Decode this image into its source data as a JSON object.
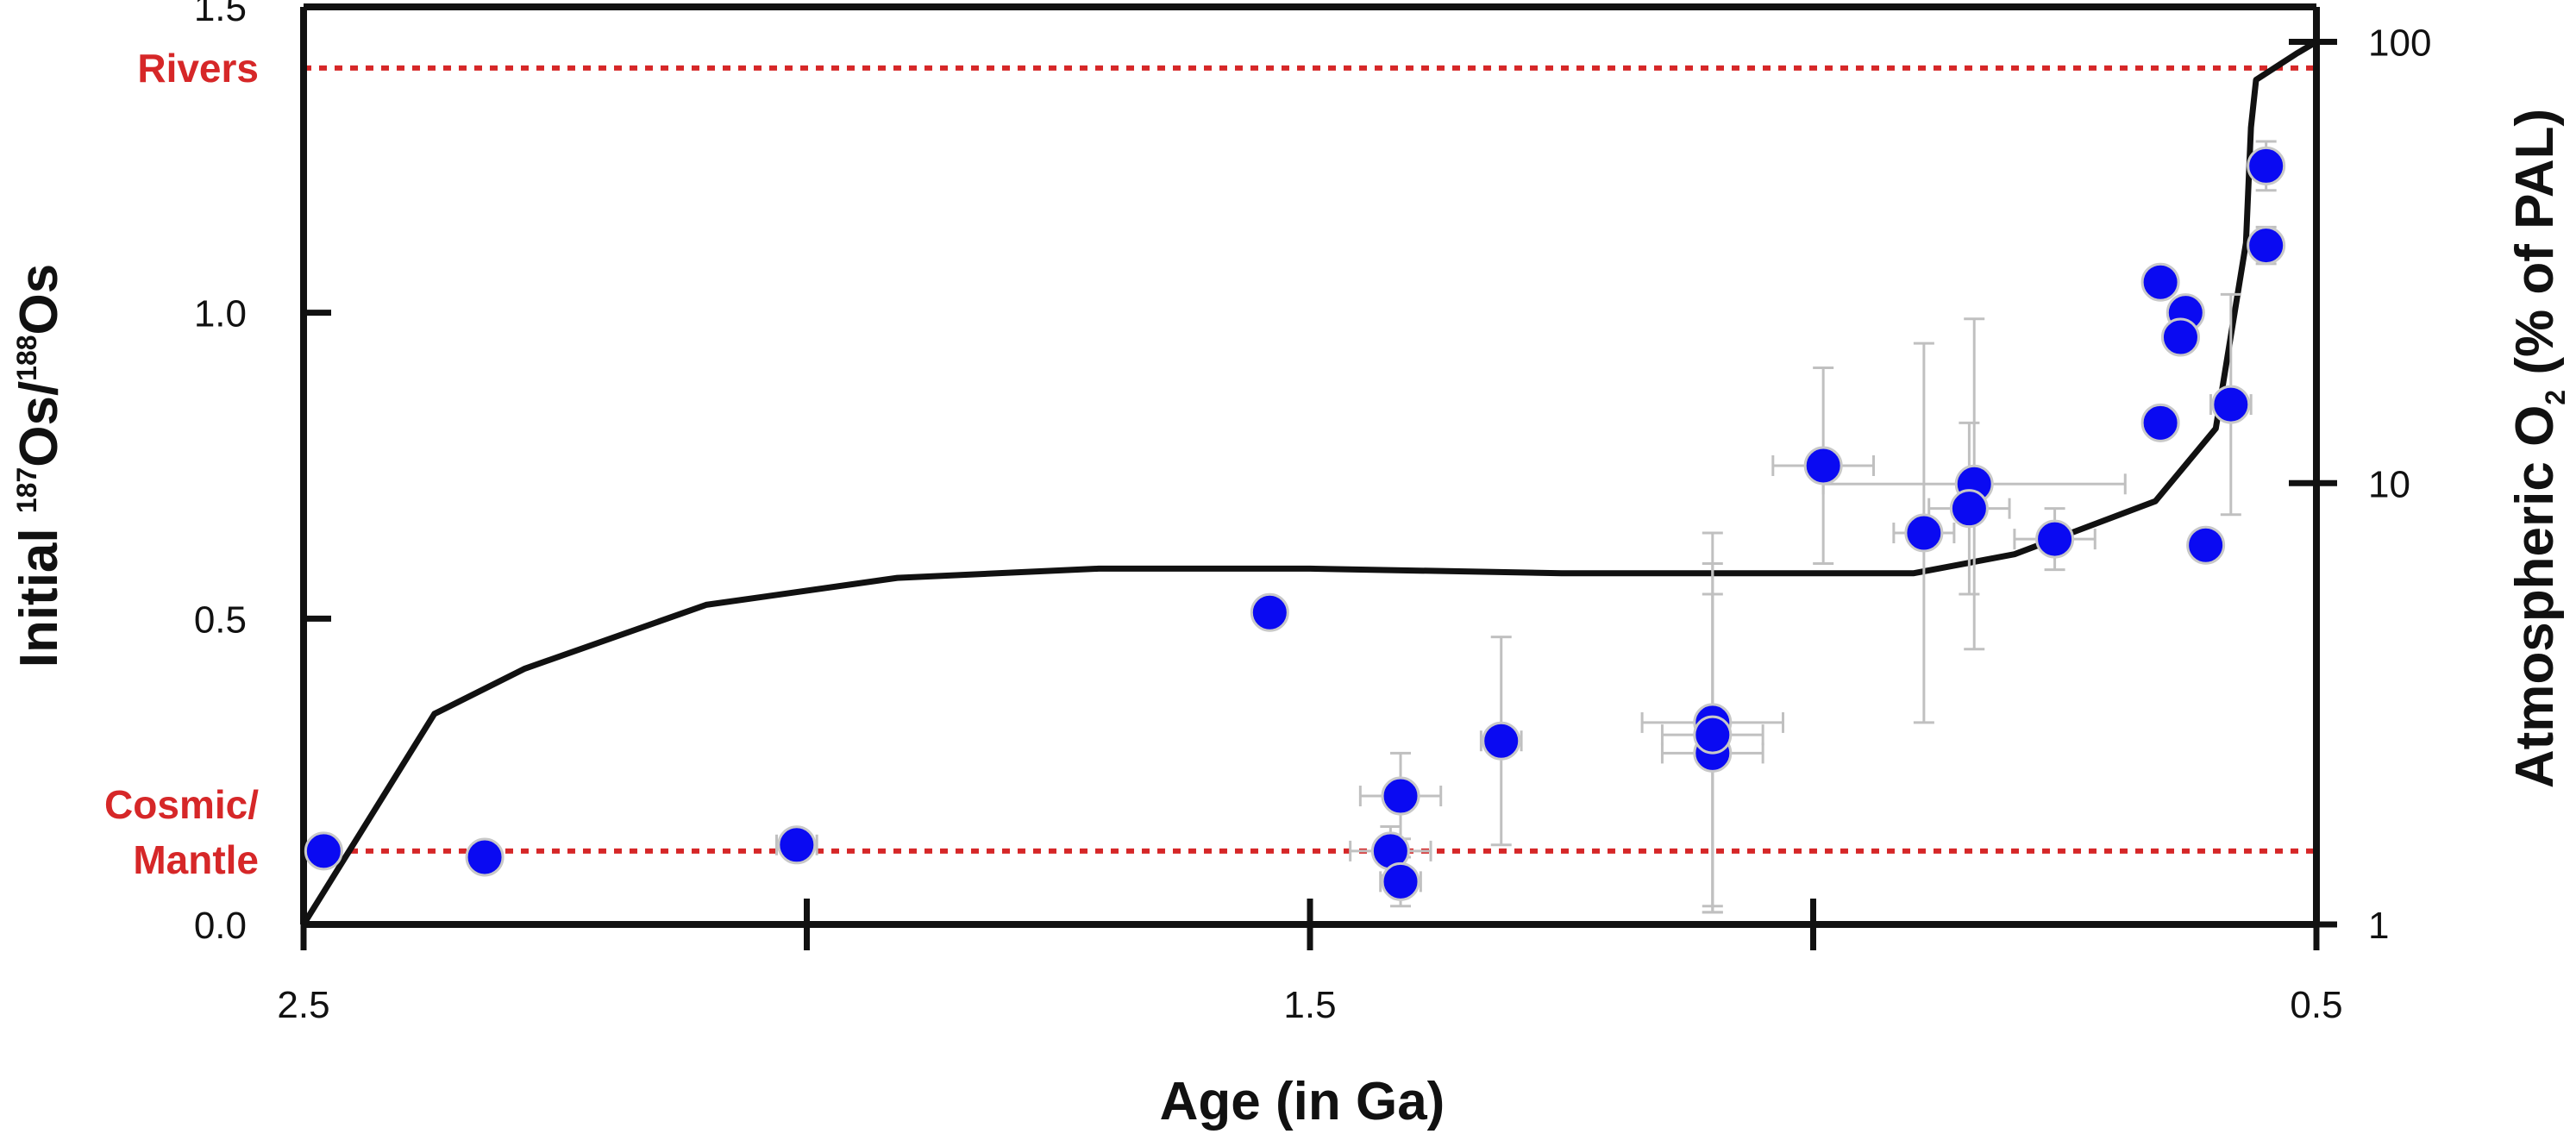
{
  "chart_data": {
    "type": "scatter",
    "xlabel": "Age (in Ga)",
    "ylabel": {
      "prefix": "Initial ",
      "sup1": "187",
      "mid": "Os/",
      "sup2": "188",
      "suffix": "Os"
    },
    "y2label": {
      "prefix": "Atmospheric O",
      "sub": "2",
      "suffix": " (% of PAL)"
    },
    "x_range": [
      2.5,
      0.5
    ],
    "x_reversed": true,
    "x_ticks": [
      2.5,
      2.0,
      1.5,
      1.0,
      0.5
    ],
    "x_tick_labels": [
      "2.5",
      "",
      "1.5",
      "",
      "0.5"
    ],
    "ylim": [
      0.0,
      1.5
    ],
    "y_ticks": [
      0.0,
      0.5,
      1.0,
      1.5
    ],
    "y_tick_labels": [
      "0.0",
      "0.5",
      "1.0",
      "1.5"
    ],
    "y2_scale": "log",
    "y2lim": [
      1,
      120
    ],
    "y2_ticks": [
      1,
      10,
      100
    ],
    "y2_tick_labels": [
      "1",
      "10",
      "100"
    ],
    "reference_lines": [
      {
        "label": "Rivers",
        "y": 1.4,
        "color": "#d62728"
      },
      {
        "label": "Cosmic/\nMantle",
        "y": 0.12,
        "color": "#d62728"
      }
    ],
    "marker_color": "#0a0af2",
    "errorbar_color": "#c0c0c0",
    "points": [
      {
        "x": 2.48,
        "y": 0.12
      },
      {
        "x": 2.32,
        "y": 0.11
      },
      {
        "x": 2.01,
        "y": 0.13,
        "xerr": 0.02,
        "yerr": 0.02
      },
      {
        "x": 1.54,
        "y": 0.51
      },
      {
        "x": 1.42,
        "y": 0.12,
        "xerr": 0.04,
        "yerr": 0.04
      },
      {
        "x": 1.41,
        "y": 0.21,
        "xerr": 0.04,
        "yerr": 0.07
      },
      {
        "x": 1.41,
        "y": 0.07,
        "xerr": 0.02,
        "yerr": 0.04
      },
      {
        "x": 1.31,
        "y": 0.3,
        "xerr": 0.02,
        "yerr": 0.17
      },
      {
        "x": 1.1,
        "y": 0.33,
        "xerr": 0.07,
        "yerr": 0.31
      },
      {
        "x": 1.1,
        "y": 0.28,
        "xerr": 0.05,
        "yerr": 0.26
      },
      {
        "x": 1.1,
        "y": 0.31,
        "xerr": 0.05,
        "yerr": 0.28
      },
      {
        "x": 0.99,
        "y": 0.75,
        "xerr": 0.05,
        "yerr": 0.16
      },
      {
        "x": 0.89,
        "y": 0.64,
        "xerr": 0.03,
        "yerr": 0.31
      },
      {
        "x": 0.84,
        "y": 0.72,
        "xerr": 0.15,
        "yerr": 0.27
      },
      {
        "x": 0.845,
        "y": 0.68,
        "xerr": 0.04,
        "yerr": 0.14
      },
      {
        "x": 0.76,
        "y": 0.63,
        "xerr": 0.04,
        "yerr": 0.05
      },
      {
        "x": 0.655,
        "y": 1.05
      },
      {
        "x": 0.63,
        "y": 1.0
      },
      {
        "x": 0.635,
        "y": 0.96
      },
      {
        "x": 0.655,
        "y": 0.82
      },
      {
        "x": 0.61,
        "y": 0.62
      },
      {
        "x": 0.585,
        "y": 0.85,
        "xerr": 0.02,
        "yerr": 0.18
      },
      {
        "x": 0.55,
        "y": 1.24,
        "yerr": 0.04
      },
      {
        "x": 0.55,
        "y": 1.11,
        "yerr": 0.03
      }
    ],
    "o2_curve": {
      "x": [
        2.5,
        2.37,
        2.28,
        2.1,
        1.91,
        1.71,
        1.5,
        1.25,
        1.0,
        0.9,
        0.8,
        0.66,
        0.6,
        0.57,
        0.565,
        0.56,
        0.52,
        0.5
      ],
      "y": [
        1.0,
        3.0,
        3.8,
        5.3,
        6.1,
        6.4,
        6.4,
        6.25,
        6.25,
        6.25,
        6.9,
        9.1,
        13.3,
        35,
        64,
        82,
        94,
        100
      ]
    }
  }
}
